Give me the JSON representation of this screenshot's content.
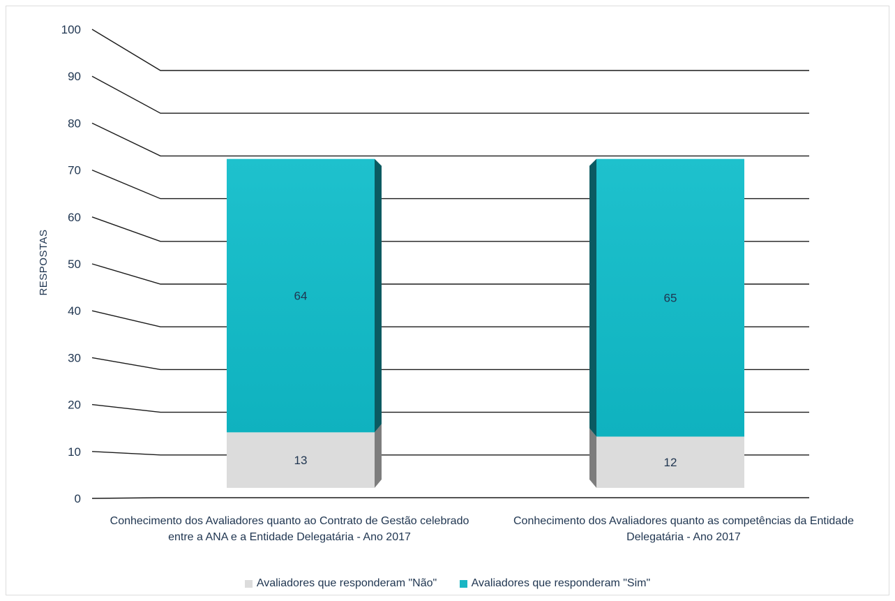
{
  "chart_data": {
    "type": "bar",
    "stacked": true,
    "ylabel": "RESPOSTAS",
    "ylim": [
      0,
      100
    ],
    "yticks": [
      0,
      10,
      20,
      30,
      40,
      50,
      60,
      70,
      80,
      90,
      100
    ],
    "grid": true,
    "legend_position": "bottom",
    "categories": [
      "Conhecimento dos Avaliadores quanto ao Contrato de Gestão celebrado entre a ANA e a Entidade Delegatária - Ano 2017",
      "Conhecimento dos Avaliadores quanto as competências da Entidade Delegatária - Ano 2017"
    ],
    "series": [
      {
        "name": "Avaliadores que responderam \"Não\"",
        "values": [
          13,
          12
        ],
        "color": "#dcdcdc"
      },
      {
        "name": "Avaliadores que responderam \"Sim\"",
        "values": [
          64,
          65
        ],
        "color": "#1ab6c4"
      }
    ]
  }
}
